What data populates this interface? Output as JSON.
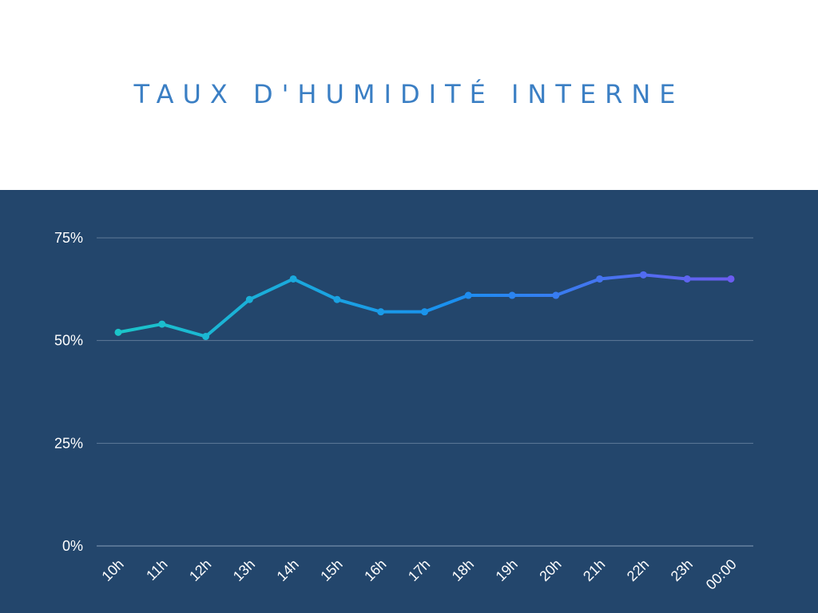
{
  "page": {
    "title": "TAUX D'HUMIDITÉ INTERNE",
    "colors": {
      "title": "#3b7fc4",
      "panel_background": "#23466c",
      "gridline": "#5f7a99",
      "text": "#ffffff",
      "line_start": "#1bc5c9",
      "line_mid": "#1a8ff0",
      "line_end": "#6b5cf0"
    }
  },
  "chart_data": {
    "type": "line",
    "title": "TAUX D'HUMIDITÉ INTERNE",
    "xlabel": "",
    "ylabel": "",
    "categories": [
      "10h",
      "11h",
      "12h",
      "13h",
      "14h",
      "15h",
      "16h",
      "17h",
      "18h",
      "19h",
      "20h",
      "21h",
      "22h",
      "23h",
      "00:00"
    ],
    "series": [
      {
        "values": [
          52,
          54,
          51,
          60,
          65,
          60,
          57,
          57,
          61,
          61,
          61,
          65,
          66,
          65,
          65
        ]
      }
    ],
    "ylim": [
      0,
      75
    ],
    "yticks": [
      0,
      25,
      50,
      75
    ],
    "ytick_labels": [
      "0%",
      "25%",
      "50%",
      "75%"
    ],
    "grid": true,
    "legend": "none"
  }
}
